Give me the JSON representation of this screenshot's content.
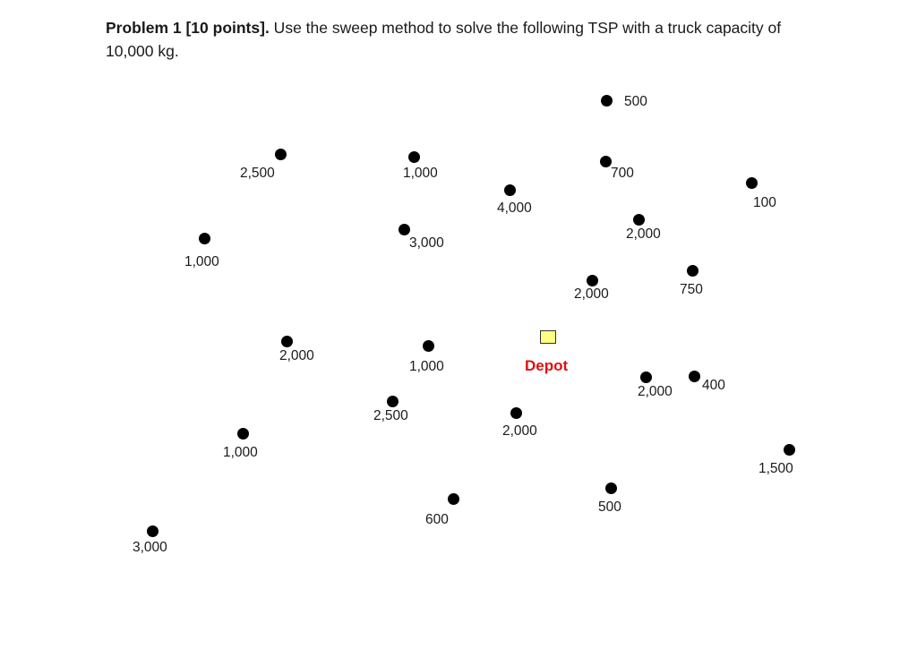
{
  "problem": {
    "heading": "Problem 1 [10 points].",
    "text": " Use the sweep method to solve the following TSP with a truck capacity of 10,000 kg."
  },
  "depot": {
    "label": "Depot",
    "color": "#e01010",
    "fill": "#ffff80"
  },
  "customers": [
    {
      "qty": "500"
    },
    {
      "qty": "2,500"
    },
    {
      "qty": "1,000"
    },
    {
      "qty": "700"
    },
    {
      "qty": "100"
    },
    {
      "qty": "4,000"
    },
    {
      "qty": "2,000"
    },
    {
      "qty": "3,000"
    },
    {
      "qty": "1,000"
    },
    {
      "qty": "2,000"
    },
    {
      "qty": "750"
    },
    {
      "qty": "2,000"
    },
    {
      "qty": "1,000"
    },
    {
      "qty": "2,000"
    },
    {
      "qty": "400"
    },
    {
      "qty": "2,500"
    },
    {
      "qty": "2,000"
    },
    {
      "qty": "1,000"
    },
    {
      "qty": "1,500"
    },
    {
      "qty": "600"
    },
    {
      "qty": "500"
    },
    {
      "qty": "3,000"
    }
  ]
}
